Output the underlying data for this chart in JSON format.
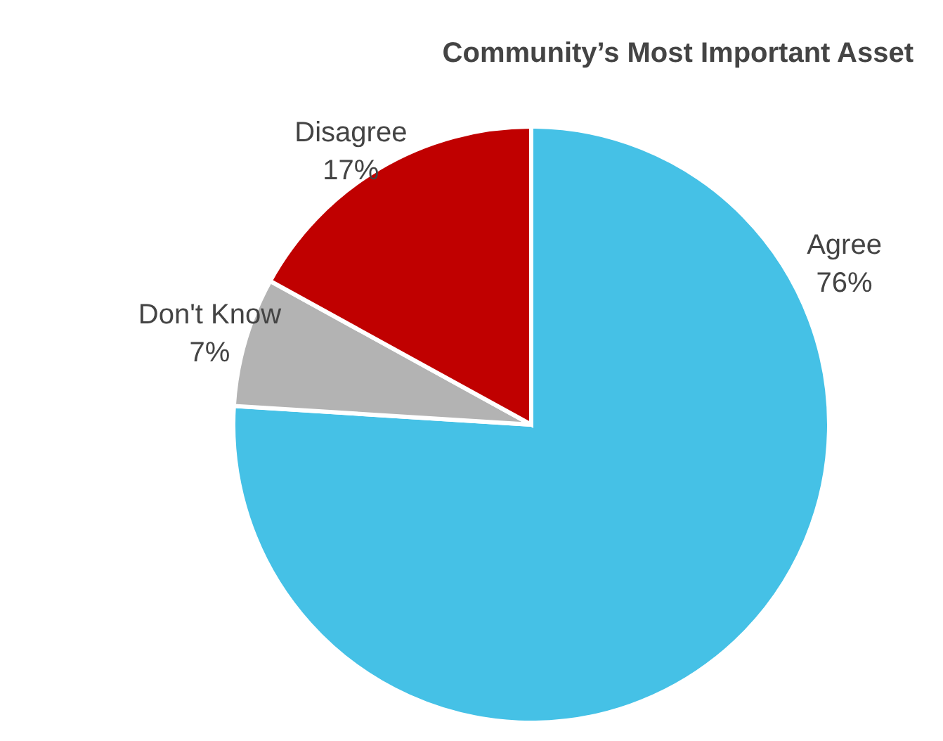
{
  "chart_data": {
    "type": "pie",
    "title": "Community’s Most Important Asset",
    "categories": [
      "Agree",
      "Don't Know",
      "Disagree"
    ],
    "values": [
      76,
      7,
      17
    ],
    "colors": [
      "#45c1e6",
      "#b3b3b3",
      "#c00000"
    ],
    "value_labels": [
      "76%",
      "7%",
      "17%"
    ]
  }
}
